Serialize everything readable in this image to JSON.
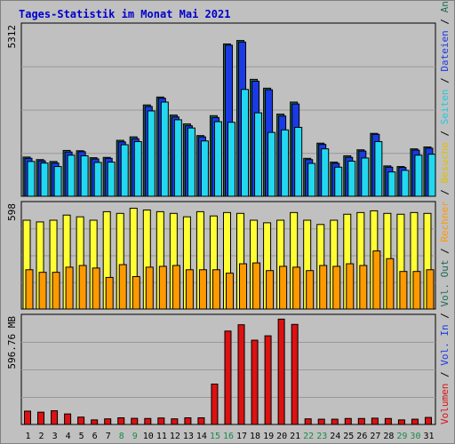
{
  "title": "Tages-Statistik im Monat Mai 2021",
  "chart_data": [
    {
      "type": "bar",
      "ymax_label": "5312",
      "ylim": [
        0,
        5312
      ],
      "categories": [
        "1",
        "2",
        "3",
        "4",
        "5",
        "6",
        "7",
        "8",
        "9",
        "10",
        "11",
        "12",
        "13",
        "14",
        "15",
        "16",
        "17",
        "18",
        "19",
        "20",
        "21",
        "22",
        "23",
        "24",
        "25",
        "26",
        "27",
        "28",
        "29",
        "30",
        "31"
      ],
      "weekend_days": [
        8,
        9,
        15,
        16,
        22,
        23,
        29,
        30
      ],
      "series": [
        {
          "name": "Anfragen",
          "color": "#1f6b52",
          "values": [
            1240,
            1160,
            1100,
            1450,
            1440,
            1220,
            1230,
            1770,
            1880,
            2890,
            3140,
            2570,
            2290,
            1920,
            2550,
            4820,
            4930,
            3700,
            3420,
            2600,
            2980,
            1200,
            1680,
            1080,
            1280,
            1470,
            1990,
            960,
            940,
            1500,
            1560
          ]
        },
        {
          "name": "Dateien",
          "color": "#1a3ae6",
          "values": [
            1200,
            1120,
            1050,
            1400,
            1410,
            1180,
            1200,
            1720,
            1820,
            2840,
            3100,
            2510,
            2230,
            1880,
            2490,
            4780,
            4880,
            3640,
            3370,
            2540,
            2920,
            1160,
            1640,
            1040,
            1230,
            1430,
            1960,
            920,
            910,
            1460,
            1520
          ]
        },
        {
          "name": "Seiten",
          "color": "#22d8f0",
          "values": [
            1100,
            1050,
            940,
            1300,
            1280,
            1070,
            1080,
            1630,
            1730,
            2700,
            2980,
            2420,
            2160,
            1750,
            2360,
            2340,
            3380,
            2640,
            2020,
            2100,
            2180,
            1040,
            1500,
            920,
            1110,
            1210,
            1730,
            770,
            820,
            1300,
            1330
          ]
        }
      ]
    },
    {
      "type": "bar",
      "ymax_label": "598",
      "ylim": [
        0,
        598
      ],
      "categories": [
        "1",
        "2",
        "3",
        "4",
        "5",
        "6",
        "7",
        "8",
        "9",
        "10",
        "11",
        "12",
        "13",
        "14",
        "15",
        "16",
        "17",
        "18",
        "19",
        "20",
        "21",
        "22",
        "23",
        "24",
        "25",
        "26",
        "27",
        "28",
        "29",
        "30",
        "31"
      ],
      "series": [
        {
          "name": "Besuche",
          "color": "#ffff33",
          "values": [
            520,
            510,
            520,
            550,
            540,
            520,
            570,
            560,
            590,
            580,
            570,
            560,
            540,
            570,
            545,
            565,
            560,
            520,
            505,
            520,
            565,
            520,
            495,
            520,
            555,
            565,
            575,
            560,
            555,
            565,
            560
          ]
        },
        {
          "name": "Rechner",
          "color": "#ff9900",
          "values": [
            230,
            215,
            215,
            245,
            255,
            240,
            185,
            260,
            190,
            245,
            250,
            255,
            230,
            230,
            230,
            210,
            265,
            270,
            225,
            250,
            245,
            225,
            255,
            250,
            265,
            255,
            340,
            295,
            220,
            220,
            230
          ]
        }
      ]
    },
    {
      "type": "bar",
      "ymax_label": "596.76 MB",
      "ylim": [
        0,
        596.76
      ],
      "categories": [
        "1",
        "2",
        "3",
        "4",
        "5",
        "6",
        "7",
        "8",
        "9",
        "10",
        "11",
        "12",
        "13",
        "14",
        "15",
        "16",
        "17",
        "18",
        "19",
        "20",
        "21",
        "22",
        "23",
        "24",
        "25",
        "26",
        "27",
        "28",
        "29",
        "30",
        "31"
      ],
      "series": [
        {
          "name": "Volumen",
          "color": "#dd1111",
          "values": [
            76,
            70,
            78,
            60,
            42,
            26,
            32,
            38,
            35,
            34,
            37,
            32,
            38,
            38,
            230,
            532,
            568,
            480,
            505,
            600,
            570,
            32,
            30,
            30,
            34,
            34,
            36,
            34,
            26,
            30,
            40
          ]
        }
      ]
    }
  ],
  "legend_right": [
    {
      "text": "Volumen",
      "color": "#dd1111"
    },
    {
      "text": " / ",
      "color": "#000000"
    },
    {
      "text": "Vol. In",
      "color": "#1a3ae6"
    },
    {
      "text": " / ",
      "color": "#000000"
    },
    {
      "text": "Vol. Out",
      "color": "#1f6b52"
    },
    {
      "text": " / ",
      "color": "#000000"
    },
    {
      "text": "Rechner",
      "color": "#ff9900"
    },
    {
      "text": " / ",
      "color": "#000000"
    },
    {
      "text": "Besuche",
      "color": "#e0c000"
    },
    {
      "text": " / ",
      "color": "#000000"
    },
    {
      "text": "Seiten",
      "color": "#22c8e0"
    },
    {
      "text": " / ",
      "color": "#000000"
    },
    {
      "text": "Dateien",
      "color": "#1a3ae6"
    },
    {
      "text": " / ",
      "color": "#000000"
    },
    {
      "text": "Anfragen",
      "color": "#1f6b52"
    }
  ],
  "colors": {
    "background": "#c0c0c0",
    "weekday_label": "#000000",
    "weekend_label": "#1a8a4a"
  }
}
